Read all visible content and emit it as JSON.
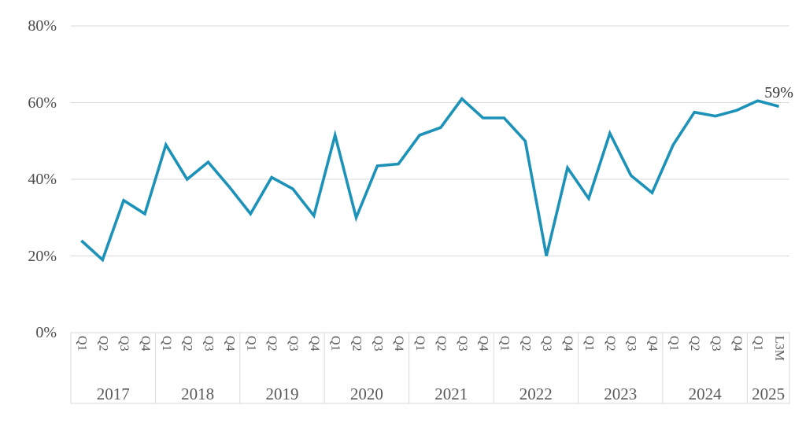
{
  "chart_data": {
    "type": "line",
    "y_axis": {
      "ylim": [
        0,
        80
      ],
      "grid": true,
      "ticks": [
        {
          "value": 80,
          "label": "80%"
        },
        {
          "value": 60,
          "label": "60%"
        },
        {
          "value": 40,
          "label": "40%"
        },
        {
          "value": 20,
          "label": "20%"
        },
        {
          "value": 0,
          "label": "0%"
        }
      ]
    },
    "x_axis": {
      "groups": [
        {
          "year": "2017",
          "quarters": [
            "Q1",
            "Q2",
            "Q3",
            "Q4"
          ],
          "values": [
            24,
            19,
            34.5,
            31
          ]
        },
        {
          "year": "2018",
          "quarters": [
            "Q1",
            "Q2",
            "Q3",
            "Q4"
          ],
          "values": [
            49,
            40,
            44.5,
            38
          ]
        },
        {
          "year": "2019",
          "quarters": [
            "Q1",
            "Q2",
            "Q3",
            "Q4"
          ],
          "values": [
            31,
            40.5,
            37.5,
            30.5
          ]
        },
        {
          "year": "2020",
          "quarters": [
            "Q1",
            "Q2",
            "Q3",
            "Q4"
          ],
          "values": [
            51.5,
            30,
            43.5,
            44
          ]
        },
        {
          "year": "2021",
          "quarters": [
            "Q1",
            "Q2",
            "Q3",
            "Q4"
          ],
          "values": [
            51.5,
            53.5,
            61,
            56
          ]
        },
        {
          "year": "2022",
          "quarters": [
            "Q1",
            "Q2",
            "Q3",
            "Q4"
          ],
          "values": [
            56,
            50,
            20,
            43
          ]
        },
        {
          "year": "2023",
          "quarters": [
            "Q1",
            "Q2",
            "Q3",
            "Q4"
          ],
          "values": [
            35,
            52,
            41,
            36.5
          ]
        },
        {
          "year": "2024",
          "quarters": [
            "Q1",
            "Q2",
            "Q3",
            "Q4"
          ],
          "values": [
            49,
            57.5,
            56.5,
            58
          ]
        },
        {
          "year": "2025",
          "quarters": [
            "Q1",
            "L3M"
          ],
          "values": [
            60.5,
            59
          ]
        }
      ]
    },
    "annotation": {
      "text": "59%",
      "attached_to": "last-point"
    },
    "legend": {
      "visible": false
    },
    "colors": {
      "line": "#1C92B8",
      "grid": "#D9D9D9",
      "separator": "#D9D9D9",
      "y_tick_label": "#4D4D4D",
      "x_axis_label": "#595959",
      "annotation_text": "#333333"
    }
  }
}
